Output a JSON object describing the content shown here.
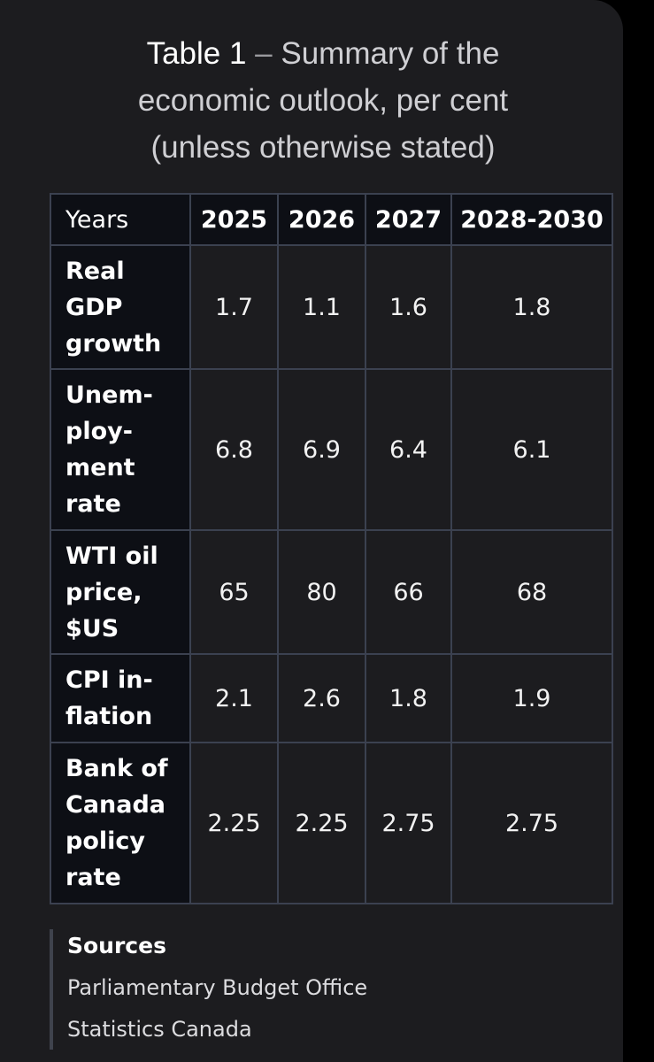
{
  "title": {
    "label": "Table 1",
    "dash": " – ",
    "line1_rest": "Summary of the",
    "line2": "economic outlook, per cent",
    "line3": "(unless otherwise stated)"
  },
  "table": {
    "header": [
      "Years",
      "2025",
      "2026",
      "2027",
      "2028-2030"
    ],
    "rows": [
      {
        "label": "Real GDP growth",
        "values": [
          "1.7",
          "1.1",
          "1.6",
          "1.8"
        ]
      },
      {
        "label": "Unem-ploy-ment rate",
        "values": [
          "6.8",
          "6.9",
          "6.4",
          "6.1"
        ]
      },
      {
        "label": "WTI oil price, $US",
        "values": [
          "65",
          "80",
          "66",
          "68"
        ]
      },
      {
        "label": "CPI in-flation",
        "values": [
          "2.1",
          "2.6",
          "1.8",
          "1.9"
        ]
      },
      {
        "label": "Bank of Canada policy rate",
        "values": [
          "2.25",
          "2.25",
          "2.75",
          "2.75"
        ]
      }
    ]
  },
  "sources": {
    "heading": "Sources",
    "items": [
      "Parliamentary Budget Office",
      "Statistics Canada"
    ]
  },
  "colors": {
    "page_background": "#000000",
    "card_background": "#1c1c1f",
    "header_cell_background": "#0d0f15",
    "border": "#3b4150",
    "text": "#ffffff"
  }
}
